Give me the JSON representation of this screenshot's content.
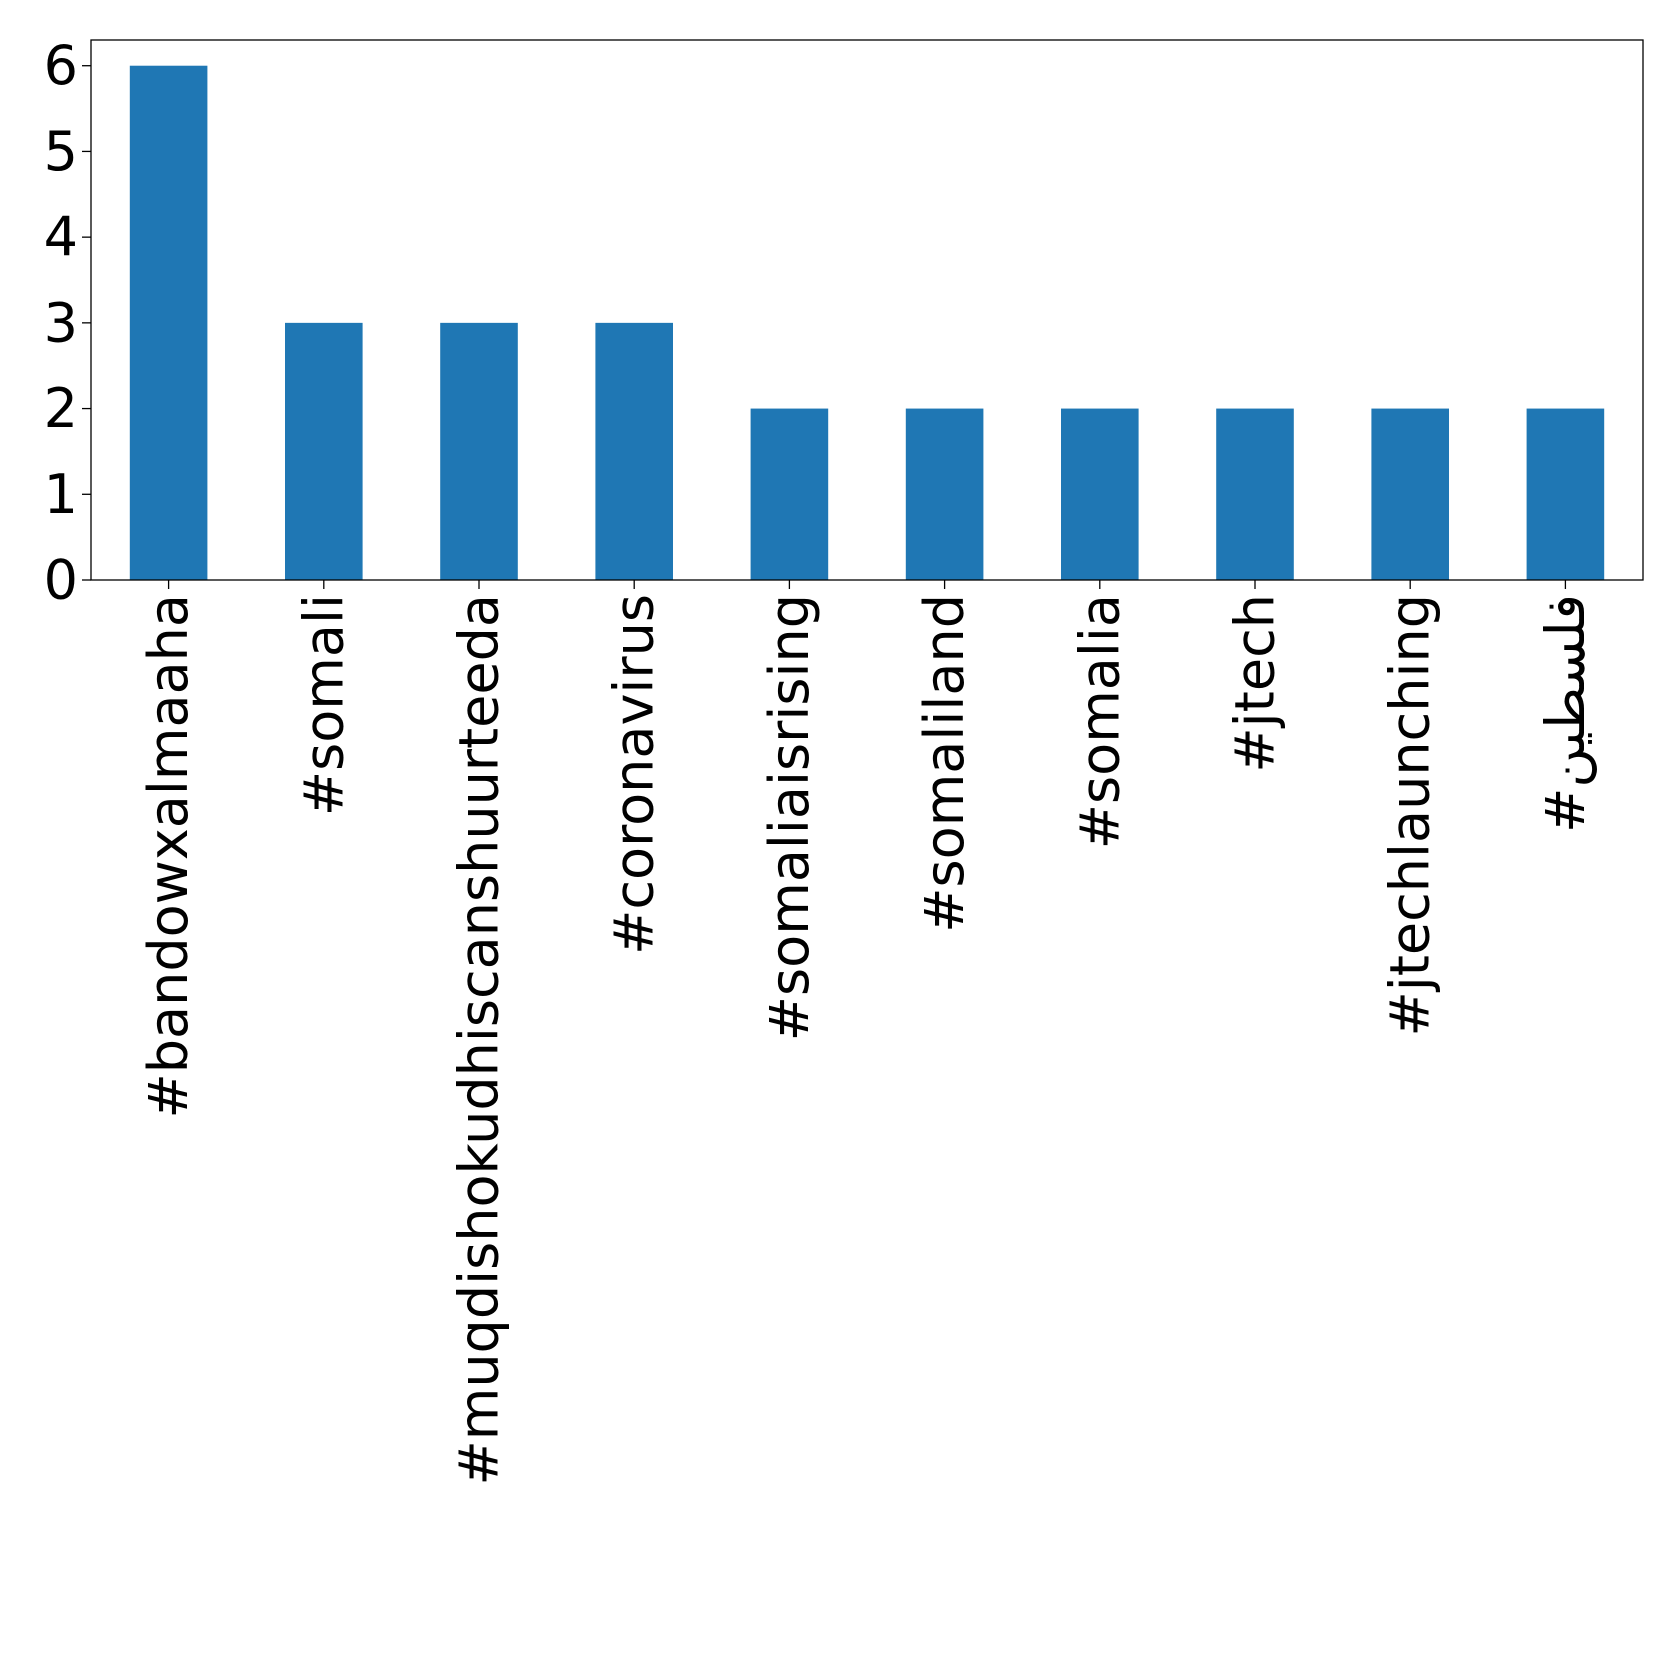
{
  "chart_data": {
    "type": "bar",
    "categories": [
      "#bandowxalmaaha",
      "#somali",
      "#muqdishokudhiscanshuurteeda",
      "#coronavirus",
      "#somaliaisrising",
      "#somaliland",
      "#somalia",
      "#jtech",
      "#jtechlaunching",
      "#فلسطين"
    ],
    "values": [
      6,
      3,
      3,
      3,
      2,
      2,
      2,
      2,
      2,
      2
    ],
    "title": "",
    "xlabel": "",
    "ylabel": "",
    "ylim": [
      0,
      6.3
    ],
    "yticks": [
      0,
      1,
      2,
      3,
      4,
      5,
      6
    ],
    "grid": false,
    "legend": "none",
    "bar_color": "#1f77b4"
  }
}
